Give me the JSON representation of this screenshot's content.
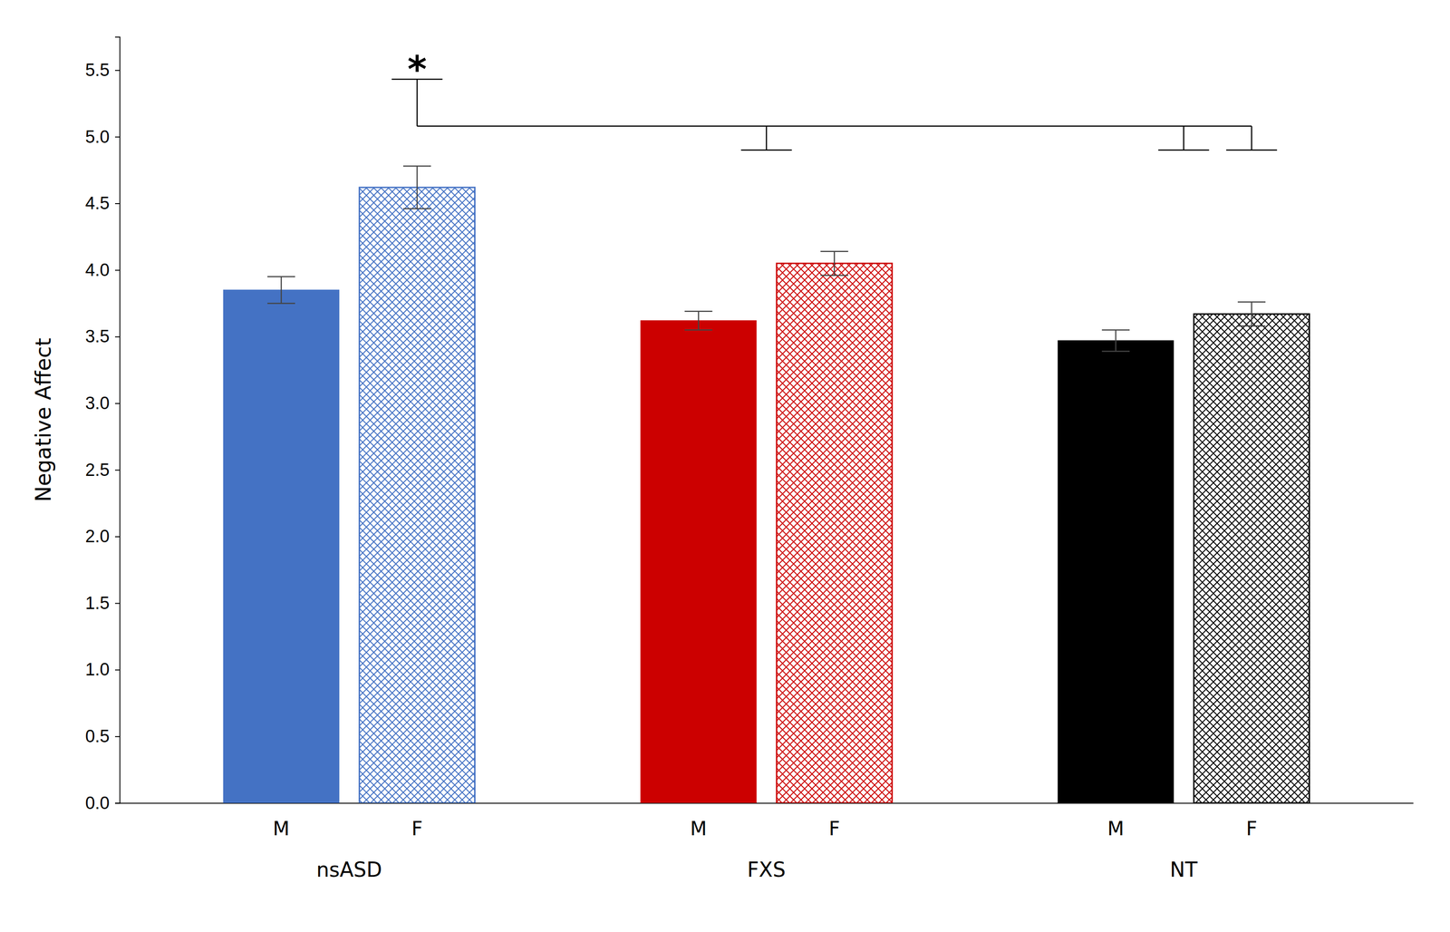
{
  "chart_data": {
    "type": "bar",
    "y_label": "Negative Affect",
    "categories": [
      "nsASD",
      "FXS",
      "NT"
    ],
    "series": [
      {
        "name": "M",
        "colors": [
          "#4472C4",
          "#CC0000",
          "#000000"
        ],
        "values": [
          3.85,
          3.62,
          3.47
        ],
        "errors": [
          0.1,
          0.07,
          0.08
        ]
      },
      {
        "name": "F",
        "colors": [
          "#4472C4",
          "#CC0000",
          "#000000"
        ],
        "values": [
          4.62,
          4.05,
          3.67
        ],
        "errors": [
          0.16,
          0.09,
          0.09
        ]
      }
    ],
    "ylim": [
      0,
      5.75
    ],
    "yticks": [
      {
        "value": 0,
        "label": "0.0"
      },
      0.5,
      {
        "value": 1.0,
        "label": "1.0"
      },
      1.5,
      {
        "value": 2.0,
        "label": "2.0"
      },
      2.5,
      {
        "value": 3.0,
        "label": "3.0"
      },
      3.5,
      {
        "value": 4.0,
        "label": "4.0"
      },
      4.5,
      {
        "value": 5.0,
        "label": "5.0"
      },
      5.5
    ],
    "grid": false,
    "annotations": [
      {
        "text": "*",
        "y": 5.48,
        "bracket_y": 5.08,
        "bracket_drop": 0.18
      }
    ]
  }
}
